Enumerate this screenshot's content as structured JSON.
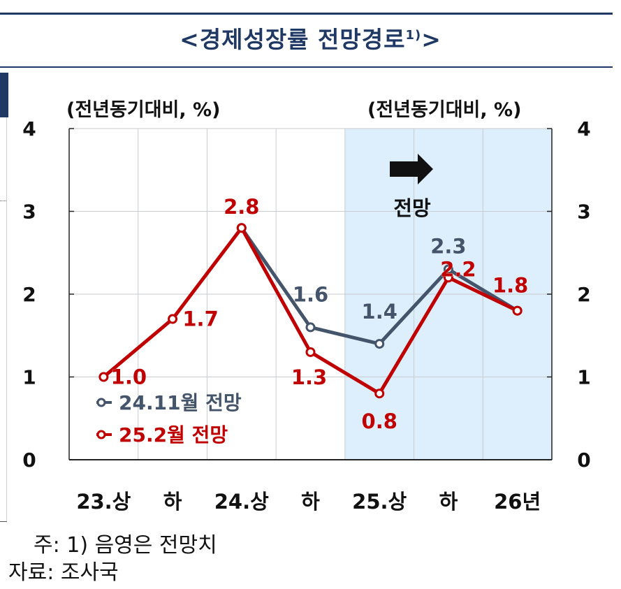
{
  "title": "<경제성장률 전망경로¹⁾>",
  "title_main": "<경제성장률 전망경로",
  "title_sup": "1)",
  "title_end": ">",
  "unit_left": "(전년동기대비, %)",
  "unit_right": "(전년동기대비, %)",
  "forecast_label": "전망",
  "notes": {
    "note1": "주: 1) 음영은 전망치",
    "source": "자료: 조사국"
  },
  "colors": {
    "title": "#1f3864",
    "series_nov": "#44546a",
    "series_feb": "#c00000",
    "shade": "#ddeefc"
  },
  "chart_data": {
    "type": "line",
    "categories": [
      "23.상",
      "하",
      "24.상",
      "하",
      "25.상",
      "하",
      "26년"
    ],
    "ylim": [
      0,
      4
    ],
    "yticks": [
      "0",
      "1",
      "2",
      "3",
      "4"
    ],
    "grid": true,
    "shaded_from_category": "25.상",
    "series": [
      {
        "name": "24.11월 전망",
        "values": [
          null,
          null,
          2.8,
          1.6,
          1.4,
          2.3,
          1.8
        ],
        "labels": [
          "",
          "",
          "",
          "1.6",
          "1.4",
          "2.3",
          ""
        ],
        "color": "#44546a"
      },
      {
        "name": "25.2월 전망",
        "values": [
          1.0,
          1.7,
          2.8,
          1.3,
          0.8,
          2.2,
          1.8
        ],
        "labels": [
          "1.0",
          "1.7",
          "2.8",
          "1.3",
          "0.8",
          "2.2",
          "1.8"
        ],
        "color": "#c00000"
      }
    ]
  }
}
